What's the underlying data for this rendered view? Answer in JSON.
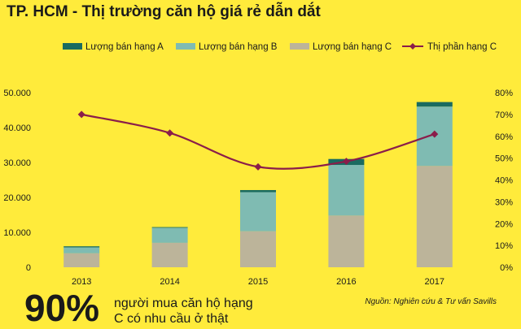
{
  "title": "TP. HCM - Thị trường căn hộ giá rẻ dẫn dắt",
  "highlight": {
    "value": "90%",
    "line1": "người mua căn hộ hạng",
    "line2": "C có nhu cầu ở thật"
  },
  "source": "Nguồn: Nghiên cứu & Tư vấn Savills",
  "colors": {
    "background": "#ffeb3b",
    "grade_a": "#1a6b60",
    "grade_b": "#7fbbb2",
    "grade_c": "#bcb49a",
    "share_c": "#8b1d4a"
  },
  "chart_data": {
    "type": "bar",
    "stacked": true,
    "categories": [
      "2013",
      "2014",
      "2015",
      "2016",
      "2017"
    ],
    "series": [
      {
        "name": "Lượng bán hạng A",
        "values": [
          300,
          200,
          600,
          1700,
          1300
        ]
      },
      {
        "name": "Lượng bán hạng B",
        "values": [
          1700,
          4300,
          11200,
          14500,
          17000
        ]
      },
      {
        "name": "Lượng bán hạng C",
        "values": [
          4000,
          7000,
          10300,
          14800,
          29000
        ]
      }
    ],
    "line_series": {
      "name": "Thị phần hạng C",
      "axis": "right",
      "values": [
        70,
        61.5,
        46,
        48.5,
        61
      ]
    },
    "legend_order": [
      "Lượng bán hạng A",
      "Lượng bán hạng B",
      "Lượng bán hạng C",
      "Thị phần hạng C"
    ],
    "legend_position": "top",
    "y_left": {
      "range": [
        0,
        50000
      ],
      "ticks": [
        "0",
        "10.000",
        "20.000",
        "30.000",
        "40.000",
        "50.000"
      ]
    },
    "y_right": {
      "range": [
        0,
        80
      ],
      "ticks": [
        "0%",
        "10%",
        "20%",
        "30%",
        "40%",
        "50%",
        "60%",
        "70%",
        "80%"
      ]
    },
    "grid": false
  }
}
